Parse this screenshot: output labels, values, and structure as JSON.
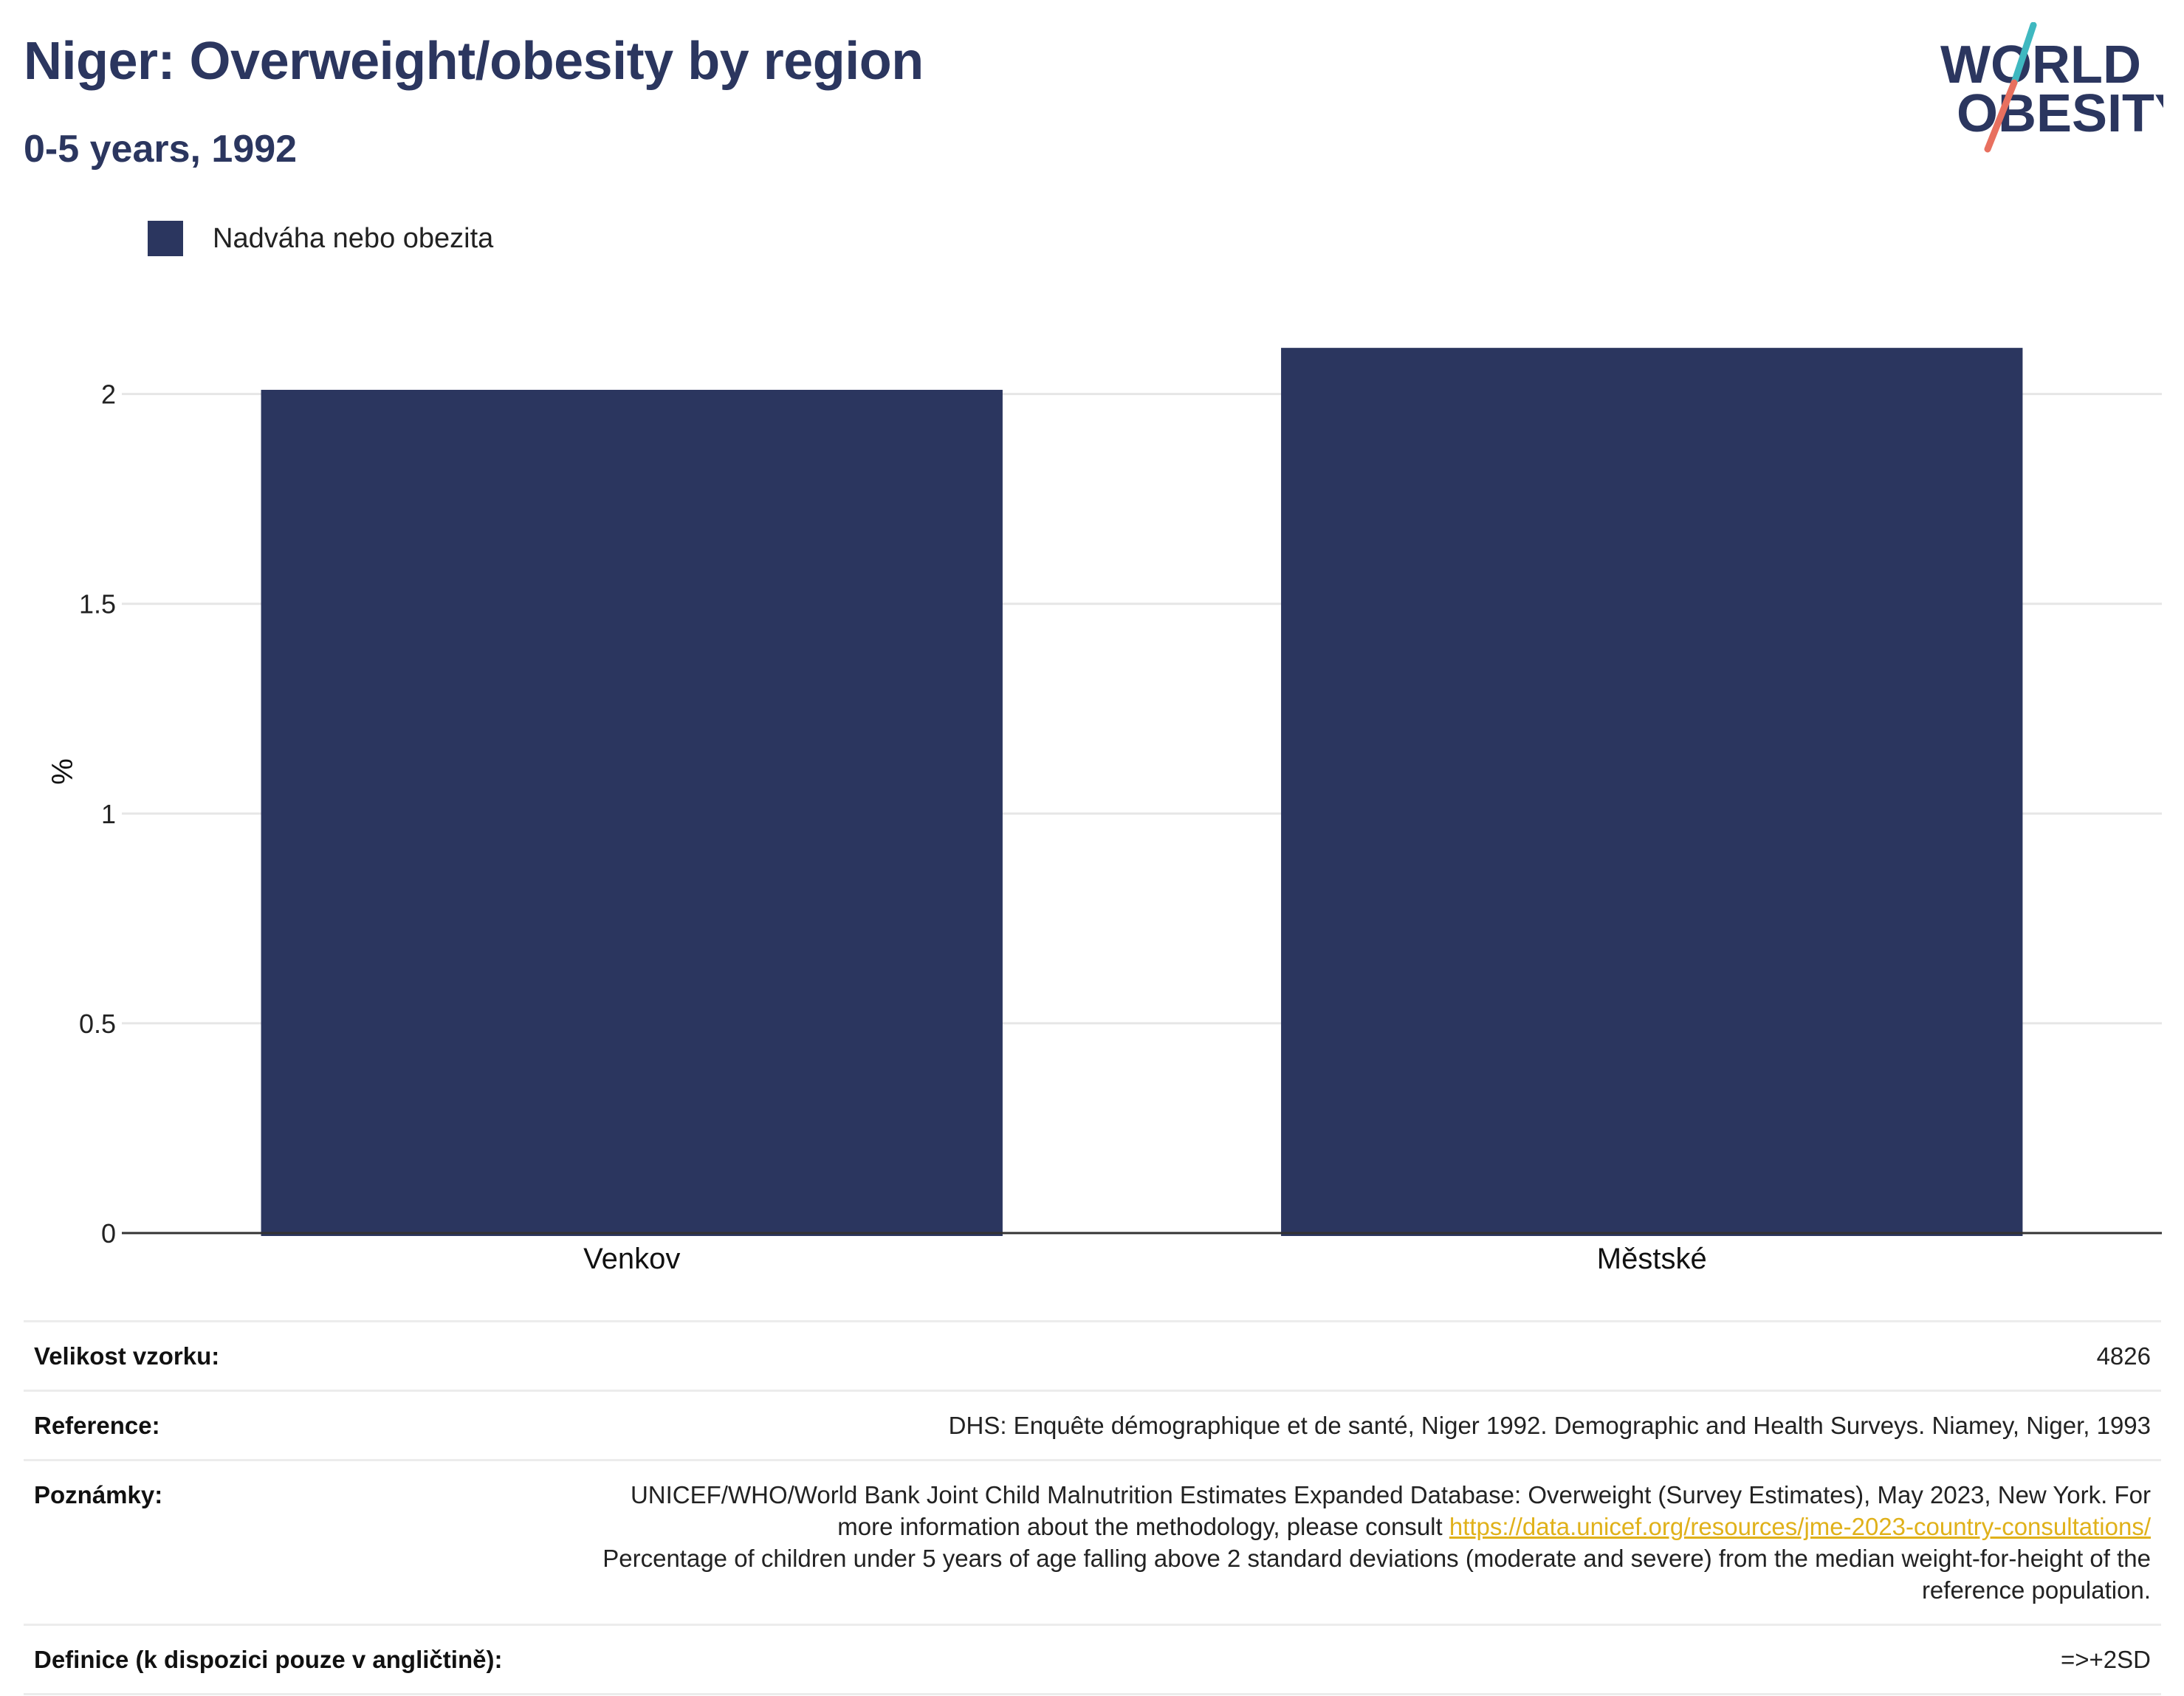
{
  "header": {
    "title": "Niger: Overweight/obesity by region",
    "subtitle": "0-5 years, 1992",
    "logo_text_line1": "WORLD",
    "logo_text_line2": "OBESITY"
  },
  "colors": {
    "bar": "#2b365f",
    "title": "#2b365f",
    "logo_teal": "#3fb8c0",
    "logo_coral": "#e8705f",
    "link": "#e0b11a"
  },
  "chart_data": {
    "type": "bar",
    "categories": [
      "Venkov",
      "Městské"
    ],
    "series": [
      {
        "name": "Nadváha nebo obezita",
        "values": [
          2.01,
          2.11
        ]
      }
    ],
    "title": "Niger: Overweight/obesity by region",
    "subtitle": "0-5 years, 1992",
    "xlabel": "",
    "ylabel": "%",
    "ylim": [
      0,
      2.2
    ],
    "yticks": [
      0,
      0.5,
      1,
      1.5,
      2
    ],
    "ytick_labels": [
      "0",
      "0.5",
      "1",
      "1.5",
      "2"
    ],
    "grid": true,
    "legend_position": "top-left"
  },
  "meta": {
    "sample_label": "Velikost vzorku:",
    "sample_value": "4826",
    "reference_label": "Reference:",
    "reference_value": "DHS: Enquête démographique et de santé, Niger 1992. Demographic and Health Surveys. Niamey, Niger, 1993",
    "notes_label": "Poznámky:",
    "notes_before_link": "UNICEF/WHO/World Bank Joint Child Malnutrition Estimates Expanded Database: Overweight (Survey Estimates), May 2023, New York. For more information about the methodology, please consult ",
    "notes_link": "https://data.unicef.org/resources/jme-2023-country-consultations/",
    "notes_after_link": "Percentage of children under 5 years of age falling above 2 standard deviations (moderate and severe) from the median weight-for-height of the reference population.",
    "definition_label": "Definice (k dispozici pouze v angličtině):",
    "definition_value": "=>+2SD"
  }
}
